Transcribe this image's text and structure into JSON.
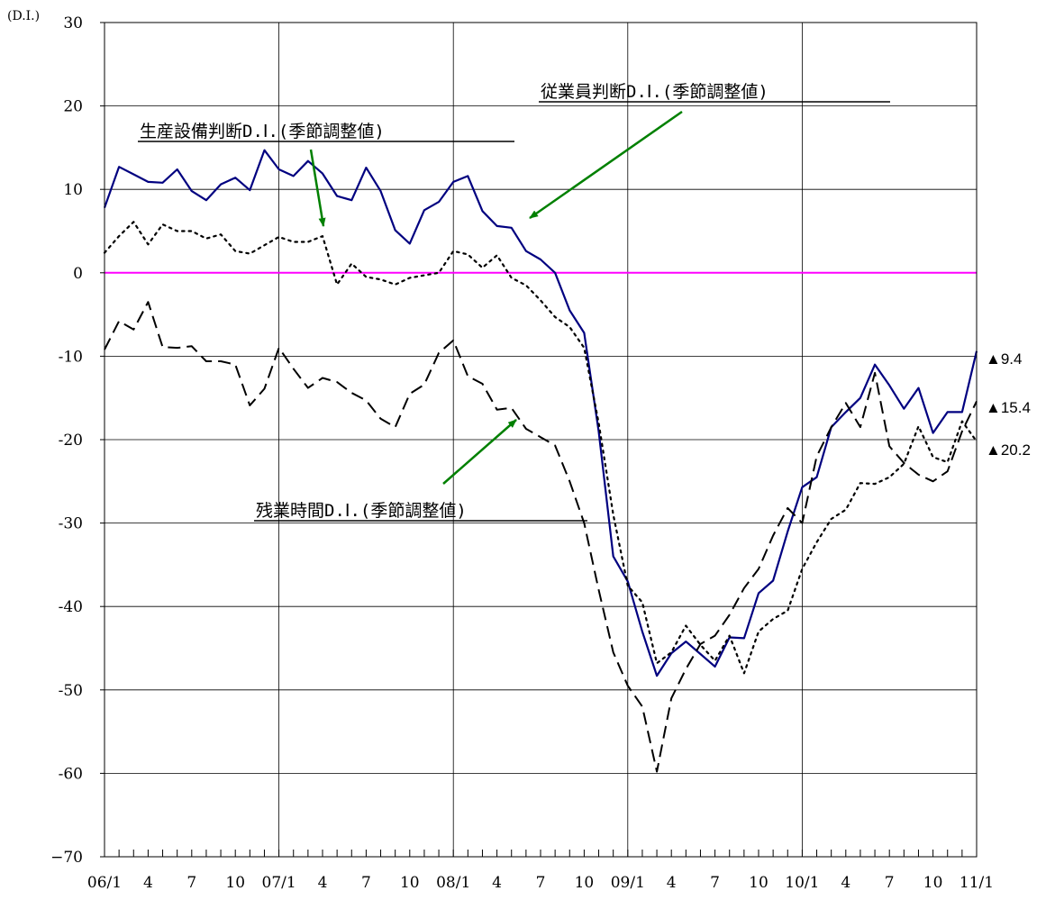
{
  "chart_data": {
    "type": "line",
    "unit_label": "(D.I.)",
    "ylim": [
      -70,
      30
    ],
    "yticks": [
      30,
      20,
      10,
      0,
      -10,
      -20,
      -30,
      -40,
      -50,
      -60,
      -70
    ],
    "ytick_labels": [
      "30",
      "20",
      "10",
      "0",
      "-10",
      "-20",
      "-30",
      "-40",
      "-50",
      "-60",
      "−70"
    ],
    "xtick_labels": [
      {
        "i": 0,
        "label": "06/1"
      },
      {
        "i": 3,
        "label": "4"
      },
      {
        "i": 6,
        "label": "7"
      },
      {
        "i": 9,
        "label": "10"
      },
      {
        "i": 12,
        "label": "07/1"
      },
      {
        "i": 15,
        "label": "4"
      },
      {
        "i": 18,
        "label": "7"
      },
      {
        "i": 21,
        "label": "10"
      },
      {
        "i": 24,
        "label": "08/1"
      },
      {
        "i": 27,
        "label": "4"
      },
      {
        "i": 30,
        "label": "7"
      },
      {
        "i": 33,
        "label": "10"
      },
      {
        "i": 36,
        "label": "09/1"
      },
      {
        "i": 39,
        "label": "4"
      },
      {
        "i": 42,
        "label": "7"
      },
      {
        "i": 45,
        "label": "10"
      },
      {
        "i": 48,
        "label": "10/1"
      },
      {
        "i": 51,
        "label": "4"
      },
      {
        "i": 54,
        "label": "7"
      },
      {
        "i": 57,
        "label": "10"
      },
      {
        "i": 60,
        "label": "11/1"
      }
    ],
    "n_points": 61,
    "grid": true,
    "zero_line_color": "#ff00ff",
    "series": [
      {
        "name": "従業員判断D.I.(季節調整値)",
        "style": "solid",
        "color": "#000080",
        "values": [
          7.8,
          12.7,
          11.8,
          10.9,
          10.8,
          12.4,
          9.8,
          8.7,
          10.6,
          11.4,
          9.9,
          14.7,
          12.4,
          11.6,
          13.4,
          11.9,
          9.2,
          8.7,
          12.6,
          9.8,
          5.1,
          3.5,
          7.5,
          8.5,
          10.9,
          11.6,
          7.4,
          5.6,
          5.4,
          2.6,
          1.6,
          0.0,
          -4.5,
          -7.2,
          -19.0,
          -34.0,
          -37.0,
          -43.0,
          -48.3,
          -45.6,
          -44.2,
          -45.7,
          -47.2,
          -43.7,
          -43.8,
          -38.4,
          -36.9,
          -31.0,
          -25.7,
          -24.5,
          -18.5,
          -16.7,
          -15.0,
          -11.0,
          -13.5,
          -16.3,
          -13.8,
          -19.2,
          -16.7,
          -16.7,
          -9.4
        ]
      },
      {
        "name": "生産設備判断D.I.(季節調整値)",
        "style": "dotted",
        "color": "#000000",
        "values": [
          2.4,
          4.4,
          6.1,
          3.4,
          5.8,
          5.0,
          5.0,
          4.1,
          4.6,
          2.6,
          2.3,
          3.3,
          4.3,
          3.7,
          3.7,
          4.4,
          -1.4,
          1.1,
          -0.5,
          -0.8,
          -1.4,
          -0.6,
          -0.3,
          0.0,
          2.6,
          2.2,
          0.6,
          2.1,
          -0.6,
          -1.5,
          -3.3,
          -5.3,
          -6.5,
          -9.0,
          -18.0,
          -29.0,
          -37.5,
          -39.5,
          -46.8,
          -45.5,
          -42.3,
          -44.6,
          -46.5,
          -43.5,
          -48.0,
          -43.0,
          -41.5,
          -40.5,
          -35.5,
          -32.3,
          -29.5,
          -28.4,
          -25.2,
          -25.3,
          -24.5,
          -22.9,
          -18.4,
          -22.1,
          -22.7,
          -17.8,
          -20.2
        ]
      },
      {
        "name": "残業時間D.I.(季節調整値)",
        "style": "dashed",
        "color": "#000000",
        "values": [
          -9.2,
          -5.8,
          -6.8,
          -3.5,
          -8.9,
          -9.0,
          -8.8,
          -10.6,
          -10.6,
          -11.0,
          -15.9,
          -13.9,
          -9.0,
          -11.5,
          -13.8,
          -12.6,
          -13.1,
          -14.4,
          -15.3,
          -17.5,
          -18.5,
          -14.5,
          -13.4,
          -9.6,
          -8.1,
          -12.4,
          -13.3,
          -16.4,
          -16.2,
          -18.7,
          -19.7,
          -20.7,
          -25.0,
          -30.0,
          -38.0,
          -45.5,
          -49.5,
          -52.0,
          -59.8,
          -51.0,
          -47.5,
          -44.5,
          -43.5,
          -41.0,
          -37.8,
          -35.5,
          -31.5,
          -28.2,
          -30.0,
          -22.0,
          -18.5,
          -15.6,
          -18.5,
          -12.0,
          -20.8,
          -22.8,
          -24.2,
          -25.0,
          -23.8,
          -19.0,
          -15.4
        ]
      }
    ],
    "annotations": [
      {
        "text": "従業員判断D.Ⅰ.(季節調整値)"
      },
      {
        "text": "生産設備判断D.Ⅰ.(季節調整値)"
      },
      {
        "text": "残業時間D.Ⅰ.(季節調整値)"
      }
    ],
    "end_labels": [
      "▲9.4",
      "▲15.4",
      "▲20.2"
    ]
  }
}
